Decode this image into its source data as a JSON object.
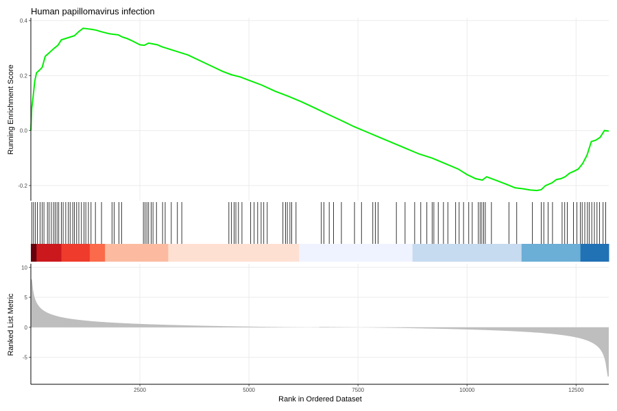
{
  "chart_data": {
    "type": "gsea-enrichment-plot",
    "title": "Human papillomavirus infection",
    "colors": {
      "es_line": "#00ee00",
      "hit_tick": "#000000",
      "metric_fill": "#bebebe",
      "grid": "#ebebeb",
      "axis": "#000000",
      "heat": [
        "#67000d",
        "#cb181d",
        "#ef3b2c",
        "#fb6a4a",
        "#fcbba1",
        "#fee0d2",
        "#eff3ff",
        "#c6dbef",
        "#6baed6",
        "#2171b5"
      ]
    },
    "x_axis": {
      "label": "Rank in Ordered Dataset",
      "range": [
        0,
        13250
      ],
      "ticks": [
        2500,
        5000,
        7500,
        10000,
        12500
      ],
      "tick_labels": [
        "2500",
        "5000",
        "7500",
        "10000",
        "12500"
      ]
    },
    "es_panel": {
      "ylabel": "Running Enrichment Score",
      "ylim": [
        -0.255,
        0.41
      ],
      "yticks": [
        -0.2,
        0.0,
        0.2,
        0.4
      ],
      "ytick_labels": [
        "-0.2",
        "0.0",
        "0.2",
        "0.4"
      ],
      "points": [
        [
          0,
          0.0
        ],
        [
          20,
          0.08
        ],
        [
          50,
          0.12
        ],
        [
          90,
          0.18
        ],
        [
          130,
          0.21
        ],
        [
          200,
          0.22
        ],
        [
          260,
          0.23
        ],
        [
          330,
          0.27
        ],
        [
          400,
          0.28
        ],
        [
          470,
          0.29
        ],
        [
          540,
          0.3
        ],
        [
          620,
          0.31
        ],
        [
          700,
          0.33
        ],
        [
          800,
          0.335
        ],
        [
          900,
          0.34
        ],
        [
          1000,
          0.345
        ],
        [
          1100,
          0.36
        ],
        [
          1200,
          0.372
        ],
        [
          1300,
          0.37
        ],
        [
          1400,
          0.368
        ],
        [
          1500,
          0.365
        ],
        [
          1600,
          0.36
        ],
        [
          1700,
          0.356
        ],
        [
          1800,
          0.352
        ],
        [
          1900,
          0.35
        ],
        [
          2000,
          0.348
        ],
        [
          2100,
          0.34
        ],
        [
          2200,
          0.335
        ],
        [
          2300,
          0.328
        ],
        [
          2400,
          0.32
        ],
        [
          2500,
          0.312
        ],
        [
          2600,
          0.31
        ],
        [
          2700,
          0.318
        ],
        [
          2800,
          0.315
        ],
        [
          2900,
          0.312
        ],
        [
          3000,
          0.305
        ],
        [
          3200,
          0.295
        ],
        [
          3400,
          0.285
        ],
        [
          3600,
          0.275
        ],
        [
          3800,
          0.26
        ],
        [
          4000,
          0.245
        ],
        [
          4200,
          0.23
        ],
        [
          4400,
          0.215
        ],
        [
          4600,
          0.203
        ],
        [
          4800,
          0.195
        ],
        [
          5000,
          0.183
        ],
        [
          5300,
          0.165
        ],
        [
          5600,
          0.143
        ],
        [
          5900,
          0.125
        ],
        [
          6200,
          0.105
        ],
        [
          6500,
          0.083
        ],
        [
          6800,
          0.06
        ],
        [
          7100,
          0.038
        ],
        [
          7400,
          0.015
        ],
        [
          7700,
          -0.005
        ],
        [
          8000,
          -0.025
        ],
        [
          8300,
          -0.045
        ],
        [
          8600,
          -0.065
        ],
        [
          8900,
          -0.085
        ],
        [
          9200,
          -0.1
        ],
        [
          9500,
          -0.12
        ],
        [
          9800,
          -0.14
        ],
        [
          10000,
          -0.16
        ],
        [
          10200,
          -0.175
        ],
        [
          10350,
          -0.18
        ],
        [
          10450,
          -0.168
        ],
        [
          10700,
          -0.183
        ],
        [
          10900,
          -0.195
        ],
        [
          11100,
          -0.208
        ],
        [
          11300,
          -0.212
        ],
        [
          11450,
          -0.216
        ],
        [
          11600,
          -0.218
        ],
        [
          11700,
          -0.215
        ],
        [
          11800,
          -0.2
        ],
        [
          11950,
          -0.19
        ],
        [
          12050,
          -0.178
        ],
        [
          12150,
          -0.175
        ],
        [
          12250,
          -0.168
        ],
        [
          12350,
          -0.155
        ],
        [
          12450,
          -0.148
        ],
        [
          12550,
          -0.14
        ],
        [
          12650,
          -0.12
        ],
        [
          12750,
          -0.09
        ],
        [
          12850,
          -0.04
        ],
        [
          12950,
          -0.035
        ],
        [
          13050,
          -0.025
        ],
        [
          13150,
          0.0
        ],
        [
          13250,
          -0.002
        ]
      ]
    },
    "hit_positions": [
      20,
      60,
      100,
      150,
      210,
      260,
      300,
      380,
      420,
      470,
      520,
      560,
      600,
      640,
      700,
      740,
      800,
      860,
      900,
      960,
      1000,
      1050,
      1100,
      1160,
      1220,
      1260,
      1320,
      1380,
      1480,
      1620,
      1860,
      1910,
      2020,
      2080,
      2580,
      2620,
      2660,
      2700,
      2760,
      2800,
      2880,
      3020,
      3080,
      3220,
      3360,
      3460,
      4540,
      4600,
      4660,
      4700,
      4760,
      4840,
      5040,
      5120,
      5200,
      5280,
      5340,
      5420,
      5780,
      5840,
      5880,
      5940,
      5980,
      6080,
      6660,
      6720,
      6840,
      6940,
      7120,
      7420,
      7580,
      7840,
      7900,
      7960,
      8380,
      8580,
      8800,
      8940,
      9080,
      9200,
      9240,
      9340,
      9460,
      9560,
      9740,
      9820,
      9920,
      10040,
      10120,
      10260,
      10300,
      10340,
      10380,
      10420,
      10560,
      10960,
      11140,
      11500,
      11700,
      11760,
      11860,
      11960,
      12180,
      12240,
      12300,
      12440,
      12520,
      12600,
      12640,
      12700,
      12760,
      12800,
      12860,
      12920,
      12980,
      13040,
      13120,
      13180
    ],
    "heat_breaks": [
      0,
      130,
      700,
      1350,
      1700,
      3150,
      6150,
      8750,
      11250,
      12600,
      13250
    ],
    "metric_panel": {
      "ylabel": "Ranked List Metric",
      "ylim": [
        -9.5,
        10.6
      ],
      "yticks": [
        -5,
        0,
        5,
        10
      ],
      "ytick_labels": [
        "-5",
        "0",
        "5",
        "10"
      ],
      "shape": {
        "n": 13250,
        "top": 8.0,
        "bottom": -8.2
      }
    }
  }
}
